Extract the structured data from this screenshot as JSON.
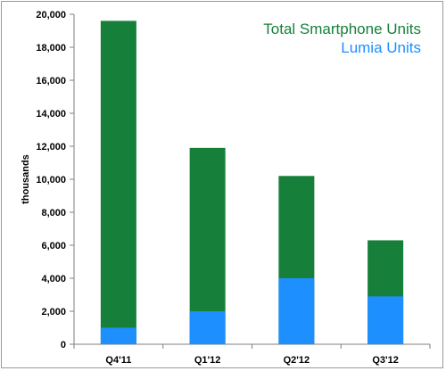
{
  "chart_data": {
    "type": "bar",
    "stacked": true,
    "categories": [
      "Q4'11",
      "Q1'12",
      "Q2'12",
      "Q3'12"
    ],
    "series": [
      {
        "name": "Lumia Units",
        "color": "#1e8fff",
        "values": [
          1000,
          2000,
          4000,
          2900
        ]
      },
      {
        "name": "Total Smartphone Units",
        "color": "#16803a",
        "values": [
          19600,
          11900,
          10200,
          6300
        ]
      }
    ],
    "ylabel": "thousands",
    "xlabel": "",
    "ylim": [
      0,
      20000
    ],
    "yticks": [
      0,
      2000,
      4000,
      6000,
      8000,
      10000,
      12000,
      14000,
      16000,
      18000,
      20000
    ],
    "ytick_labels": [
      "0",
      "2,000",
      "4,000",
      "6,000",
      "8,000",
      "10,000",
      "12,000",
      "14,000",
      "16,000",
      "18,000",
      "20,000"
    ],
    "grid": false,
    "legend_placement": "top-right"
  }
}
